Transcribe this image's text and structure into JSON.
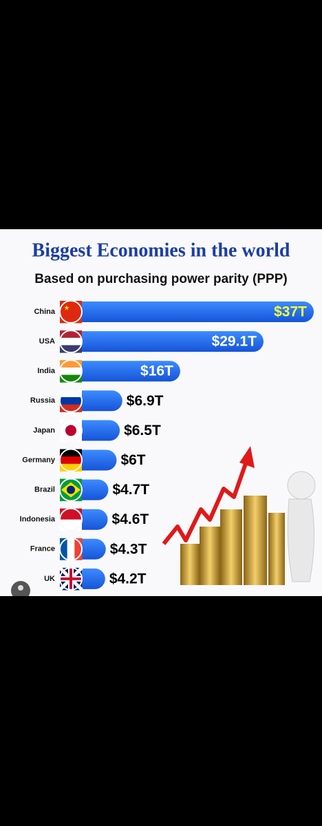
{
  "chart_data": {
    "type": "bar",
    "orientation": "horizontal",
    "title": "Biggest Economies in the world",
    "subtitle": "Based on purchasing power parity (PPP)",
    "categories": [
      "China",
      "USA",
      "India",
      "Russia",
      "Japan",
      "Germany",
      "Brazil",
      "Indonesia",
      "France",
      "UK"
    ],
    "values": [
      37,
      29.1,
      16,
      6.9,
      6.5,
      6,
      4.7,
      4.6,
      4.3,
      4.2
    ],
    "value_labels": [
      "$37T",
      "$29.1T",
      "$16T",
      "$6.9T",
      "$6.5T",
      "$6T",
      "$4.7T",
      "$4.6T",
      "$4.3T",
      "$4.2T"
    ],
    "color": "#1f6ff2"
  }
}
